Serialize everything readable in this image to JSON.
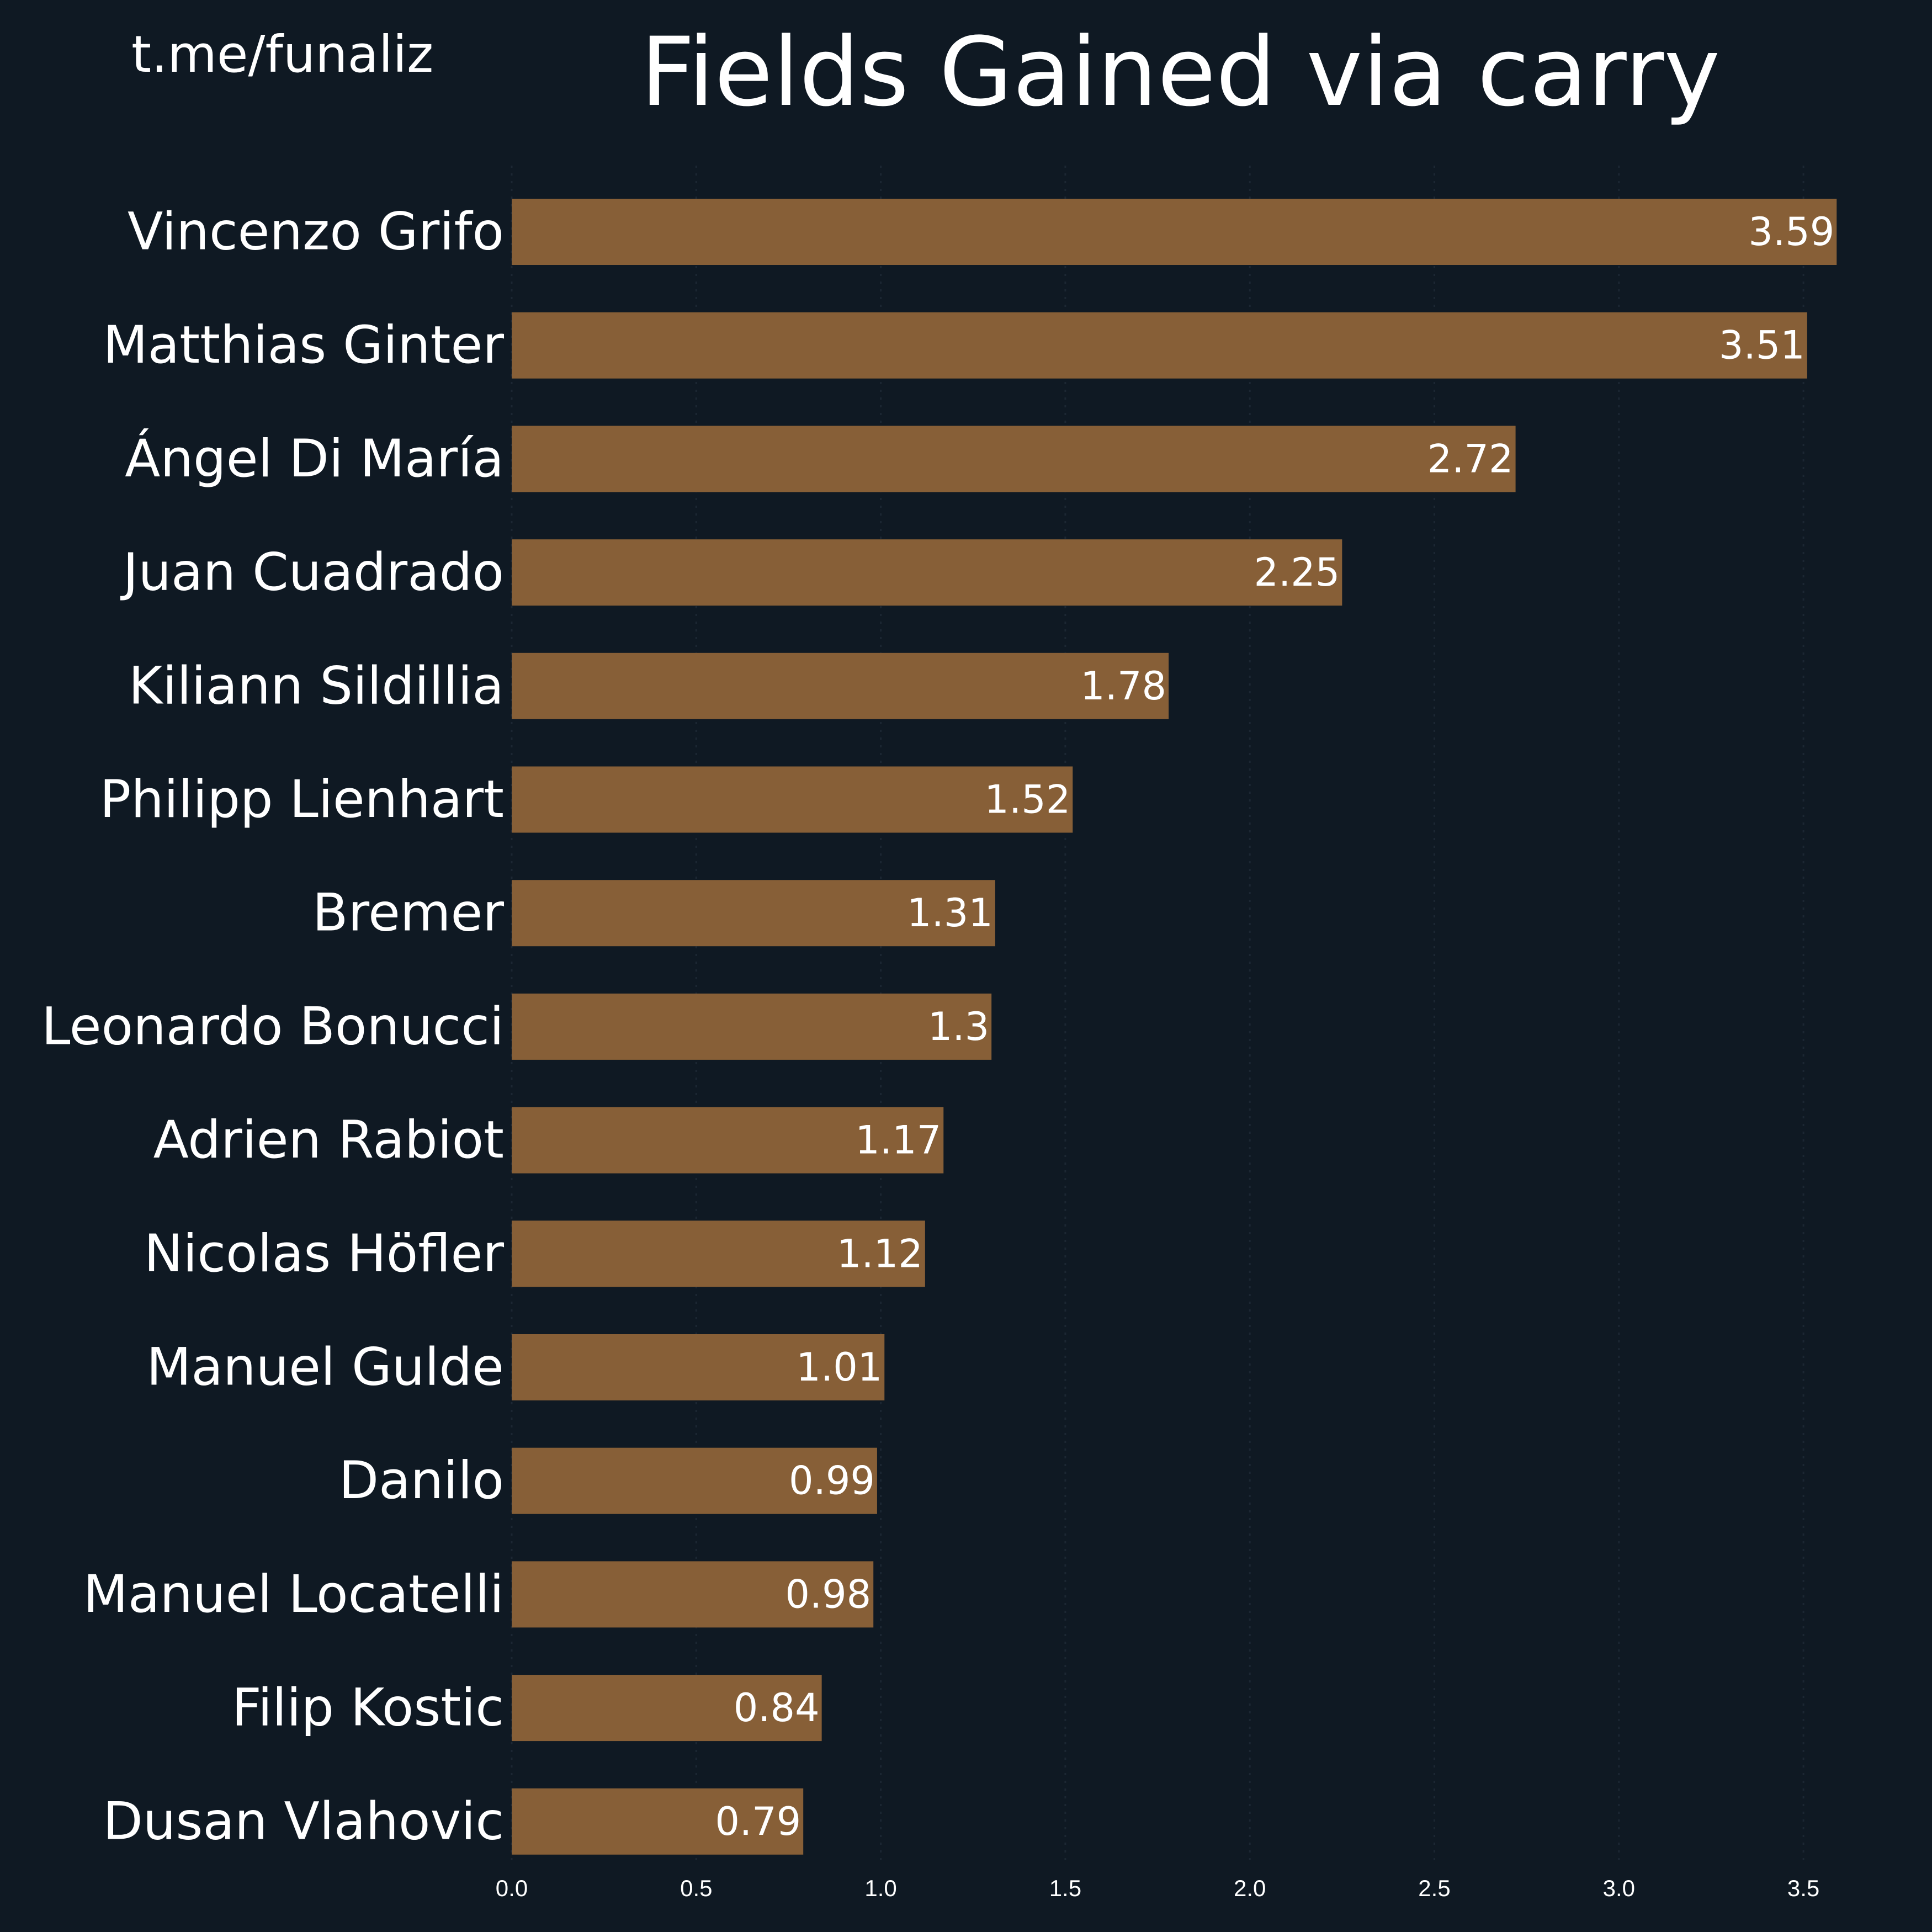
{
  "watermark": "t.me/funaliz",
  "colors": {
    "background": "#0f1923",
    "bar": "#875f37",
    "text": "#ffffff",
    "grid": "#1c2733"
  },
  "chart_data": {
    "type": "bar",
    "orientation": "horizontal",
    "title": "Fields Gained via carry",
    "xlabel": "",
    "ylabel": "",
    "xlim": [
      0,
      3.7
    ],
    "xticks": [
      0.0,
      0.5,
      1.0,
      1.5,
      2.0,
      2.5,
      3.0,
      3.5
    ],
    "xtick_labels": [
      "0.0",
      "0.5",
      "1.0",
      "1.5",
      "2.0",
      "2.5",
      "3.0",
      "3.5"
    ],
    "grid": "vertical, faint dotted",
    "categories": [
      "Vincenzo Grifo",
      "Matthias Ginter",
      "Ángel Di María",
      "Juan Cuadrado",
      "Kiliann Sildillia",
      "Philipp Lienhart",
      "Bremer",
      "Leonardo Bonucci",
      "Adrien Rabiot",
      "Nicolas Höfler",
      "Manuel Gulde",
      "Danilo",
      "Manuel Locatelli",
      "Filip Kostic",
      "Dusan Vlahovic"
    ],
    "values": [
      3.59,
      3.51,
      2.72,
      2.25,
      1.78,
      1.52,
      1.31,
      1.3,
      1.17,
      1.12,
      1.01,
      0.99,
      0.98,
      0.84,
      0.79
    ],
    "value_labels": [
      "3.59",
      "3.51",
      "2.72",
      "2.25",
      "1.78",
      "1.52",
      "1.31",
      "1.3",
      "1.17",
      "1.12",
      "1.01",
      "0.99",
      "0.98",
      "0.84",
      "0.79"
    ]
  }
}
